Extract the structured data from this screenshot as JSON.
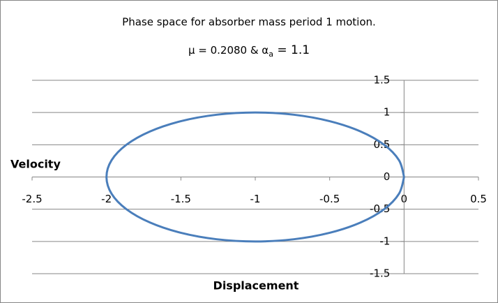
{
  "chart_data": {
    "type": "scatter-line",
    "title": "Phase space for absorber mass period 1 motion.",
    "subtitle": {
      "text": "μ = 0.2080 & α",
      "subscript": "a",
      "suffix": " = 1.1"
    },
    "x_label": "Displacement",
    "y_label": "Velocity",
    "xlim": [
      -2.5,
      0.5
    ],
    "xticks": [
      -2.5,
      -2,
      -1.5,
      -1,
      -0.5,
      0,
      0.5
    ],
    "ylim": [
      -1.5,
      1.5
    ],
    "yticks": [
      -1.5,
      -1,
      -0.5,
      0,
      0.5,
      1,
      1.5
    ],
    "grid": true,
    "x": [
      0,
      -0.034,
      -0.134,
      -0.293,
      -0.5,
      -0.741,
      -1,
      -1.259,
      -1.5,
      -1.707,
      -1.866,
      -1.966,
      -2,
      -1.966,
      -1.866,
      -1.707,
      -1.5,
      -1.259,
      -1,
      -0.741,
      -0.5,
      -0.293,
      -0.134,
      -0.034,
      0
    ],
    "series": [
      {
        "color": "#4a7ebb",
        "values": [
          0,
          0.259,
          0.5,
          0.707,
          0.866,
          0.966,
          1,
          0.966,
          0.866,
          0.707,
          0.5,
          0.259,
          0,
          -0.259,
          -0.5,
          -0.707,
          -0.866,
          -0.966,
          -1,
          -0.966,
          -0.866,
          -0.707,
          -0.5,
          -0.259,
          0
        ]
      }
    ]
  }
}
